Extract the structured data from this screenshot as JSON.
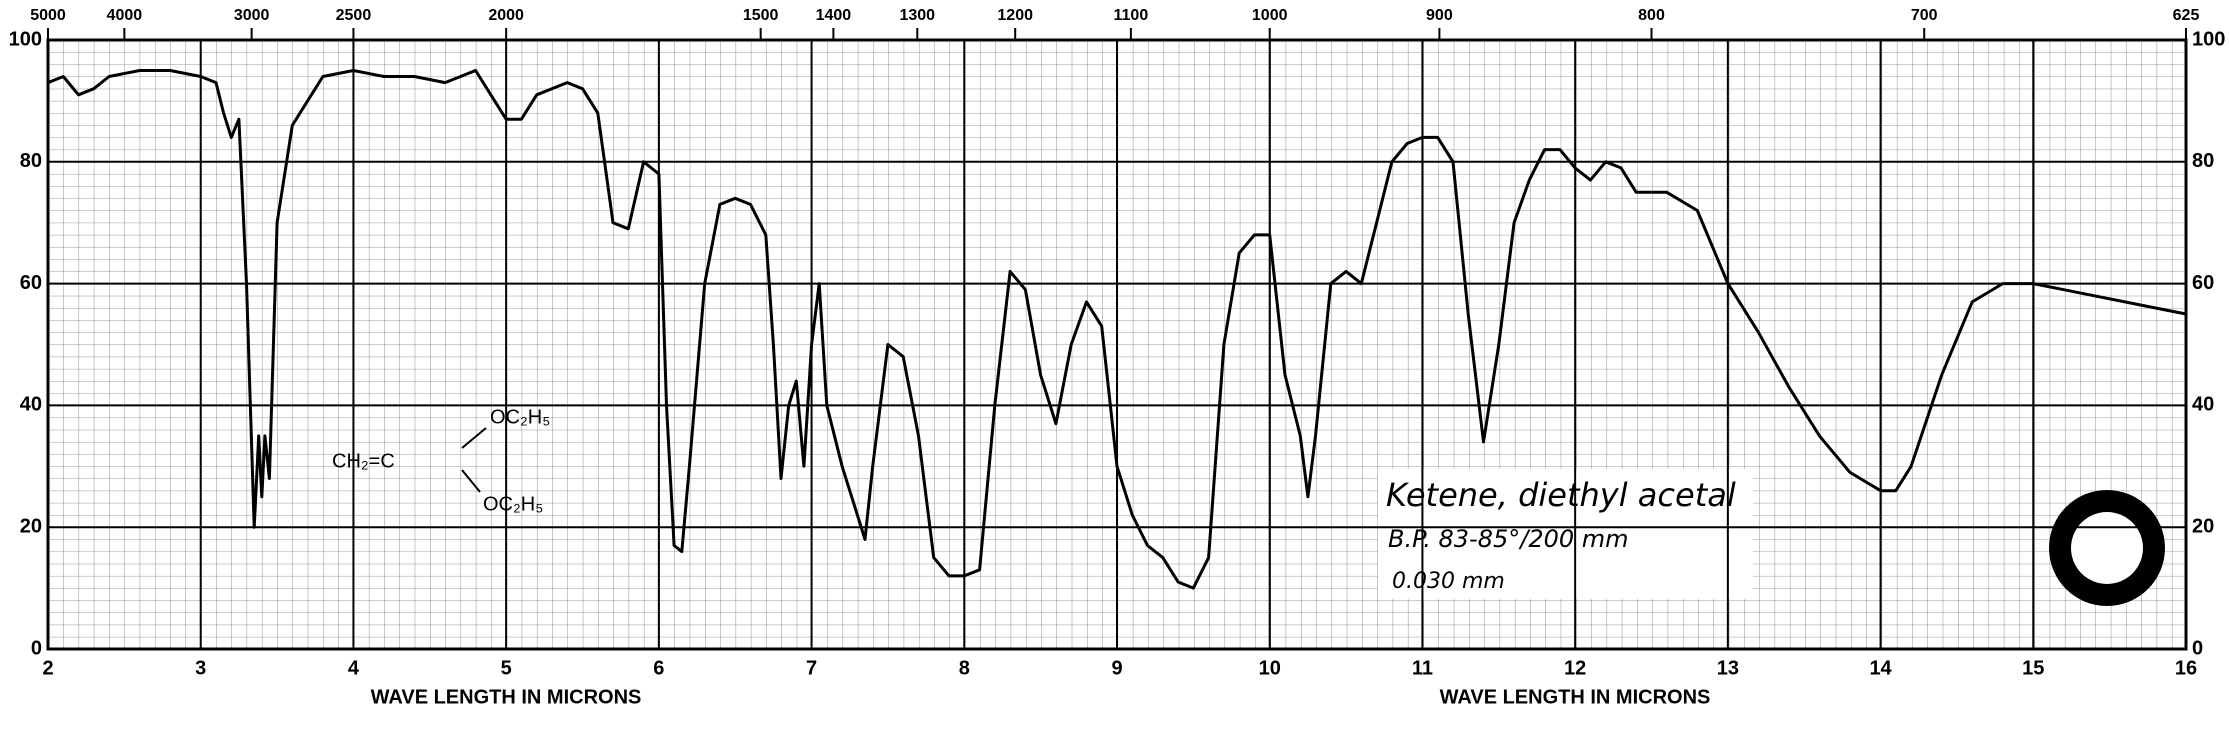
{
  "chart_data": {
    "type": "line",
    "x_label": "WAVE LENGTH IN MICRONS",
    "xlim": [
      2,
      16
    ],
    "xticks": [
      2,
      3,
      4,
      5,
      6,
      7,
      8,
      9,
      10,
      11,
      12,
      13,
      14,
      15,
      16
    ],
    "ylim": [
      0,
      100
    ],
    "yticks": [
      0,
      20,
      40,
      60,
      80,
      100
    ],
    "x2scale": "reciprocal",
    "x2ticks": [
      5000,
      4000,
      3000,
      2500,
      2000,
      1500,
      1400,
      1300,
      1200,
      1100,
      1000,
      900,
      800,
      700,
      625
    ],
    "grid": true,
    "x": [
      2.0,
      2.1,
      2.2,
      2.3,
      2.4,
      2.6,
      2.8,
      3.0,
      3.1,
      3.15,
      3.2,
      3.25,
      3.3,
      3.35,
      3.38,
      3.4,
      3.42,
      3.45,
      3.5,
      3.6,
      3.7,
      3.8,
      4.0,
      4.2,
      4.4,
      4.6,
      4.8,
      5.0,
      5.1,
      5.2,
      5.4,
      5.5,
      5.6,
      5.7,
      5.8,
      5.9,
      6.0,
      6.05,
      6.1,
      6.15,
      6.2,
      6.3,
      6.4,
      6.5,
      6.6,
      6.7,
      6.75,
      6.8,
      6.85,
      6.9,
      6.95,
      7.0,
      7.05,
      7.1,
      7.2,
      7.3,
      7.35,
      7.4,
      7.5,
      7.6,
      7.7,
      7.8,
      7.9,
      8.0,
      8.1,
      8.2,
      8.3,
      8.4,
      8.5,
      8.6,
      8.7,
      8.8,
      8.9,
      9.0,
      9.1,
      9.2,
      9.3,
      9.4,
      9.5,
      9.6,
      9.7,
      9.8,
      9.9,
      10.0,
      10.1,
      10.2,
      10.25,
      10.3,
      10.4,
      10.5,
      10.6,
      10.7,
      10.8,
      10.9,
      11.0,
      11.1,
      11.2,
      11.3,
      11.4,
      11.5,
      11.6,
      11.7,
      11.8,
      11.9,
      12.0,
      12.1,
      12.2,
      12.3,
      12.4,
      12.6,
      12.8,
      13.0,
      13.2,
      13.4,
      13.6,
      13.8,
      14.0,
      14.1,
      14.2,
      14.4,
      14.6,
      14.8,
      15.0,
      15.2,
      15.4,
      15.6,
      15.8,
      16.0
    ],
    "series": [
      {
        "color": "#000000",
        "values": [
          93,
          94,
          91,
          92,
          94,
          95,
          95,
          94,
          93,
          88,
          84,
          87,
          60,
          20,
          35,
          25,
          35,
          28,
          70,
          86,
          90,
          94,
          95,
          94,
          94,
          93,
          95,
          87,
          87,
          91,
          93,
          92,
          88,
          70,
          69,
          80,
          78,
          40,
          17,
          16,
          30,
          60,
          73,
          74,
          73,
          68,
          50,
          28,
          40,
          44,
          30,
          50,
          60,
          40,
          30,
          22,
          18,
          30,
          50,
          48,
          35,
          15,
          12,
          12,
          13,
          40,
          62,
          59,
          45,
          37,
          50,
          57,
          53,
          30,
          22,
          17,
          15,
          11,
          10,
          15,
          50,
          65,
          68,
          68,
          45,
          35,
          25,
          35,
          60,
          62,
          60,
          70,
          80,
          83,
          84,
          84,
          80,
          55,
          34,
          50,
          70,
          77,
          82,
          82,
          79,
          77,
          80,
          79,
          75,
          75,
          72,
          60,
          52,
          43,
          35,
          29,
          26,
          26,
          30,
          45,
          57,
          60,
          60,
          59,
          58,
          57,
          56,
          55
        ]
      }
    ],
    "annotations": {
      "name": "Ketene, diethyl acetal",
      "bp": "B.P. 83-85°/200 mm",
      "thickness": "0.030 mm",
      "formula_left": "CH₂=C",
      "formula_top": "OC₂H₅",
      "formula_bottom": "OC₂H₅"
    }
  }
}
